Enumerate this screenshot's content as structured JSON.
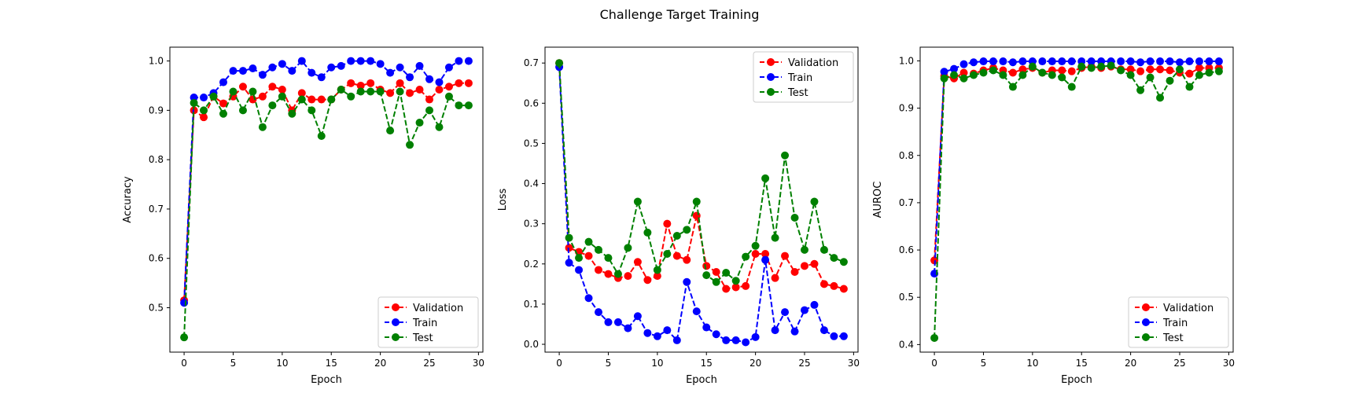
{
  "figure": {
    "title": "Challenge Target Training"
  },
  "chart_data": [
    {
      "type": "line",
      "xlabel": "Epoch",
      "ylabel": "Accuracy",
      "xlim": [
        -1.45,
        30.45
      ],
      "ylim": [
        0.41,
        1.028
      ],
      "xticks": [
        0,
        5,
        10,
        15,
        20,
        25,
        30
      ],
      "yticks": [
        0.5,
        0.6,
        0.7,
        0.8,
        0.9,
        1.0
      ],
      "grid": false,
      "legend": "lower-right",
      "x": [
        0,
        1,
        2,
        3,
        4,
        5,
        6,
        7,
        8,
        9,
        10,
        11,
        12,
        13,
        14,
        15,
        16,
        17,
        18,
        19,
        20,
        21,
        22,
        23,
        24,
        25,
        26,
        27,
        28,
        29
      ],
      "series": [
        {
          "name": "Validation",
          "color": "#ff0000",
          "values": [
            0.515,
            0.9,
            0.886,
            0.928,
            0.914,
            0.928,
            0.948,
            0.922,
            0.928,
            0.948,
            0.942,
            0.9,
            0.935,
            0.922,
            0.922,
            0.922,
            0.942,
            0.955,
            0.95,
            0.955,
            0.942,
            0.935,
            0.955,
            0.935,
            0.942,
            0.922,
            0.942,
            0.948,
            0.955,
            0.955
          ]
        },
        {
          "name": "Train",
          "color": "#0000ff",
          "values": [
            0.51,
            0.926,
            0.926,
            0.935,
            0.957,
            0.98,
            0.98,
            0.985,
            0.972,
            0.987,
            0.994,
            0.98,
            1.0,
            0.976,
            0.967,
            0.987,
            0.99,
            1.0,
            1.0,
            1.0,
            0.994,
            0.976,
            0.987,
            0.967,
            0.99,
            0.963,
            0.957,
            0.987,
            1.0,
            1.0
          ]
        },
        {
          "name": "Test",
          "color": "#008000",
          "values": [
            0.44,
            0.915,
            0.9,
            0.928,
            0.893,
            0.938,
            0.9,
            0.938,
            0.866,
            0.91,
            0.928,
            0.893,
            0.922,
            0.9,
            0.848,
            0.922,
            0.942,
            0.928,
            0.938,
            0.938,
            0.938,
            0.859,
            0.938,
            0.83,
            0.875,
            0.9,
            0.866,
            0.928,
            0.91,
            0.91
          ]
        }
      ]
    },
    {
      "type": "line",
      "xlabel": "Epoch",
      "ylabel": "Loss",
      "xlim": [
        -1.45,
        30.45
      ],
      "ylim": [
        -0.0195,
        0.7395
      ],
      "xticks": [
        0,
        5,
        10,
        15,
        20,
        25,
        30
      ],
      "yticks": [
        0.0,
        0.1,
        0.2,
        0.3,
        0.4,
        0.5,
        0.6,
        0.7
      ],
      "grid": false,
      "legend": "upper-right",
      "x": [
        0,
        1,
        2,
        3,
        4,
        5,
        6,
        7,
        8,
        9,
        10,
        11,
        12,
        13,
        14,
        15,
        16,
        17,
        18,
        19,
        20,
        21,
        22,
        23,
        24,
        25,
        26,
        27,
        28,
        29
      ],
      "series": [
        {
          "name": "Validation",
          "color": "#ff0000",
          "values": [
            0.7,
            0.24,
            0.23,
            0.22,
            0.185,
            0.175,
            0.165,
            0.17,
            0.205,
            0.16,
            0.17,
            0.3,
            0.22,
            0.21,
            0.32,
            0.195,
            0.18,
            0.138,
            0.142,
            0.145,
            0.225,
            0.225,
            0.165,
            0.22,
            0.18,
            0.195,
            0.2,
            0.15,
            0.145,
            0.138
          ]
        },
        {
          "name": "Train",
          "color": "#0000ff",
          "values": [
            0.69,
            0.203,
            0.185,
            0.115,
            0.08,
            0.055,
            0.055,
            0.04,
            0.07,
            0.028,
            0.02,
            0.035,
            0.01,
            0.155,
            0.082,
            0.042,
            0.025,
            0.01,
            0.01,
            0.005,
            0.018,
            0.21,
            0.035,
            0.08,
            0.032,
            0.085,
            0.098,
            0.035,
            0.02,
            0.02
          ]
        },
        {
          "name": "Test",
          "color": "#008000",
          "values": [
            0.7,
            0.265,
            0.215,
            0.255,
            0.235,
            0.215,
            0.175,
            0.24,
            0.355,
            0.278,
            0.185,
            0.225,
            0.27,
            0.285,
            0.355,
            0.172,
            0.155,
            0.178,
            0.158,
            0.218,
            0.245,
            0.413,
            0.265,
            0.47,
            0.315,
            0.235,
            0.355,
            0.235,
            0.215,
            0.205
          ]
        }
      ]
    },
    {
      "type": "line",
      "xlabel": "Epoch",
      "ylabel": "AUROC",
      "xlim": [
        -1.45,
        30.45
      ],
      "ylim": [
        0.384,
        1.029
      ],
      "xticks": [
        0,
        5,
        10,
        15,
        20,
        25,
        30
      ],
      "yticks": [
        0.4,
        0.5,
        0.6,
        0.7,
        0.8,
        0.9,
        1.0
      ],
      "grid": false,
      "legend": "lower-right",
      "x": [
        0,
        1,
        2,
        3,
        4,
        5,
        6,
        7,
        8,
        9,
        10,
        11,
        12,
        13,
        14,
        15,
        16,
        17,
        18,
        19,
        20,
        21,
        22,
        23,
        24,
        25,
        26,
        27,
        28,
        29
      ],
      "series": [
        {
          "name": "Validation",
          "color": "#ff0000",
          "values": [
            0.578,
            0.968,
            0.963,
            0.975,
            0.973,
            0.98,
            0.985,
            0.98,
            0.975,
            0.982,
            0.985,
            0.975,
            0.98,
            0.98,
            0.978,
            0.985,
            0.988,
            0.985,
            0.988,
            0.982,
            0.982,
            0.978,
            0.982,
            0.982,
            0.98,
            0.975,
            0.973,
            0.985,
            0.985,
            0.985
          ]
        },
        {
          "name": "Train",
          "color": "#0000ff",
          "values": [
            0.55,
            0.977,
            0.983,
            0.993,
            0.997,
            0.999,
            0.999,
            0.999,
            0.997,
            0.999,
            0.999,
            0.999,
            0.999,
            0.999,
            0.999,
            0.999,
            0.999,
            0.999,
            0.999,
            0.999,
            0.999,
            0.997,
            0.999,
            0.999,
            0.999,
            0.997,
            0.999,
            0.999,
            0.999,
            0.999
          ]
        },
        {
          "name": "Test",
          "color": "#008000",
          "values": [
            0.414,
            0.963,
            0.97,
            0.963,
            0.97,
            0.975,
            0.98,
            0.97,
            0.945,
            0.97,
            0.988,
            0.975,
            0.97,
            0.965,
            0.945,
            0.988,
            0.985,
            0.988,
            0.99,
            0.98,
            0.97,
            0.938,
            0.965,
            0.922,
            0.958,
            0.982,
            0.945,
            0.97,
            0.975,
            0.978
          ]
        }
      ]
    }
  ]
}
